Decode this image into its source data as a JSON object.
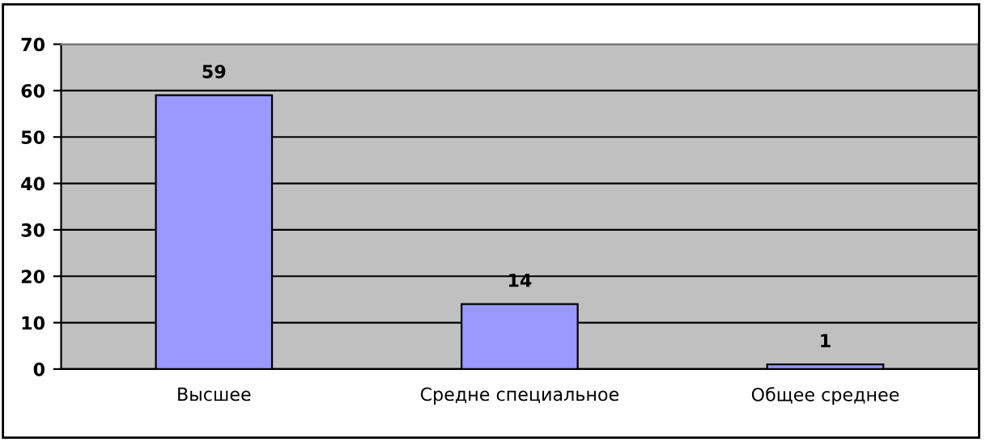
{
  "chart_data": {
    "type": "bar",
    "categories": [
      "Высшее",
      "Средне специальное",
      "Общее среднее"
    ],
    "values": [
      59,
      14,
      1
    ],
    "color": "#9999ff",
    "ylim": [
      0,
      70
    ],
    "yticks": [
      0,
      10,
      20,
      30,
      40,
      50,
      60,
      70
    ],
    "grid": "y",
    "data_labels": true,
    "legend": false
  }
}
